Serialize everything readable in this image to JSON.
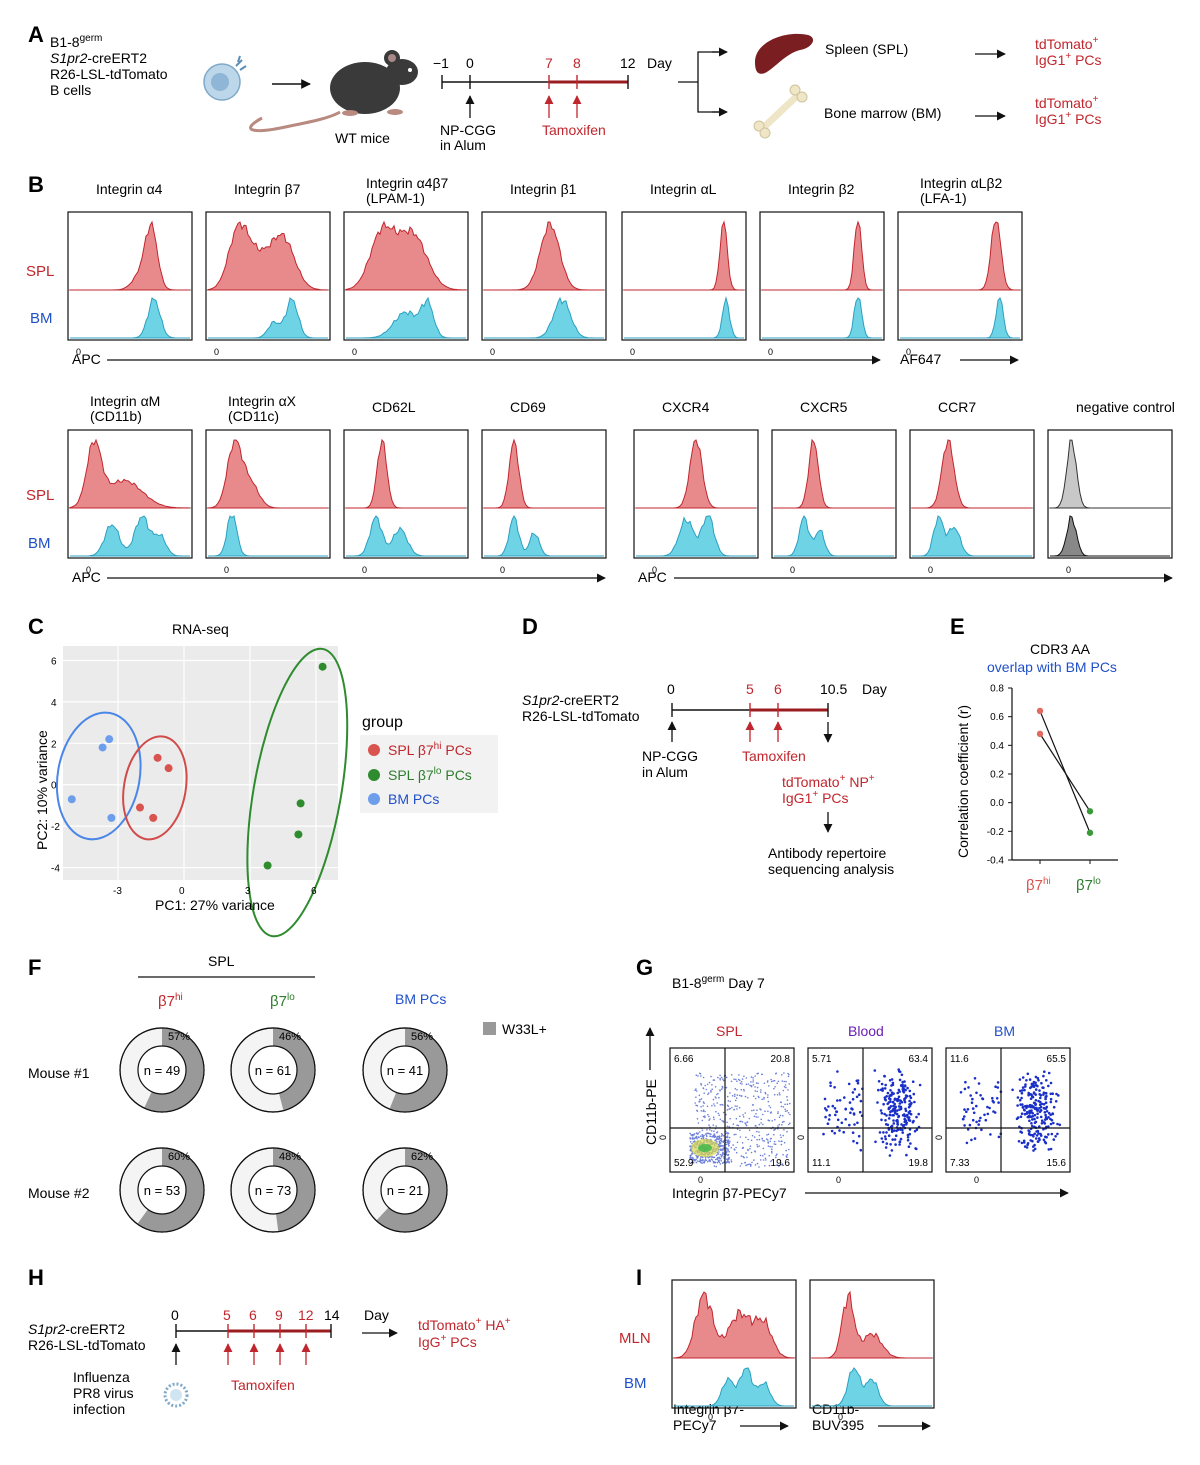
{
  "panel_letters": {
    "A": "A",
    "B": "B",
    "C": "C",
    "D": "D",
    "E": "E",
    "F": "F",
    "G": "G",
    "H": "H",
    "I": "I"
  },
  "colors": {
    "red": "#c0262d",
    "blue": "#2050c8",
    "green": "#2e7d2e",
    "spl_fill": "#e8898c",
    "bm_fill": "#6fd3e6",
    "ctrl_fill": "#c8c8c8",
    "grey_donut": "#999999"
  },
  "panelA": {
    "cells_line1": "B1-8",
    "cells_sup": "germ",
    "cells_line2": "S1pr2",
    "cells_line2b": "-creERT2",
    "cells_line3": "R26-LSL-tdTomato",
    "cells_line4": "B cells",
    "mice_label": "WT mice",
    "timeline_ticks": [
      "−1",
      "0",
      "7",
      "8",
      "12"
    ],
    "day": "Day",
    "immunization_line1": "NP-CGG",
    "immunization_line2": "in Alum",
    "tamoxifen": "Tamoxifen",
    "spleen": "Spleen (SPL)",
    "bone_marrow": "Bone marrow (BM)",
    "target_line1": "tdTomato",
    "target_sup": "+",
    "target_line2a": "IgG1",
    "target_line2b": " PCs"
  },
  "panelB": {
    "row1_titles": [
      [
        "Integrin α4",
        ""
      ],
      [
        "Integrin β7",
        ""
      ],
      [
        "Integrin α4β7",
        "(LPAM-1)"
      ],
      [
        "Integrin β1",
        ""
      ],
      [
        "Integrin αL",
        ""
      ],
      [
        "Integrin β2",
        ""
      ],
      [
        "Integrin αLβ2",
        "(LFA-1)"
      ]
    ],
    "row2_titles": [
      [
        "Integrin αM",
        "(CD11b)"
      ],
      [
        "Integrin αX",
        "(CD11c)"
      ],
      [
        "CD62L",
        ""
      ],
      [
        "CD69",
        ""
      ],
      [
        "CXCR4",
        ""
      ],
      [
        "CXCR5",
        ""
      ],
      [
        "CCR7",
        ""
      ],
      [
        "negative control",
        ""
      ]
    ],
    "spl": "SPL",
    "bm": "BM",
    "apc": "APC",
    "af647": "AF647",
    "zero": "0"
  },
  "panelC": {
    "title": "RNA-seq",
    "xlabel": "PC1: 27% variance",
    "ylabel": "PC2: 10% variance",
    "legend_title": "group",
    "legend": [
      [
        "SPL β7",
        "hi",
        " PCs"
      ],
      [
        "SPL β7",
        "lo",
        " PCs"
      ],
      [
        "BM PCs",
        "",
        ""
      ]
    ]
  },
  "panelD": {
    "line1a": "S1pr2",
    "line1b": "-creERT2",
    "line2": "R26-LSL-tdTomato",
    "ticks": [
      "0",
      "5",
      "6",
      "10.5"
    ],
    "day": "Day",
    "immunization_line1": "NP-CGG",
    "immunization_line2": "in Alum",
    "tamoxifen": "Tamoxifen",
    "target_line1a": "tdTomato",
    "target_line1b": " NP",
    "target_line2a": "IgG1",
    "target_line2b": " PCs",
    "plus": "+",
    "analysis_line1": "Antibody repertoire",
    "analysis_line2": "sequencing analysis"
  },
  "panelE": {
    "title": "CDR3 AA",
    "subtitle": "overlap with BM PCs",
    "ylabel": "Correlation coefficient (r)",
    "xlabels": [
      [
        "β7",
        "hi"
      ],
      [
        "β7",
        "lo"
      ]
    ]
  },
  "panelF": {
    "spl": "SPL",
    "headers": [
      [
        "β7",
        "hi"
      ],
      [
        "β7",
        "lo"
      ],
      [
        "BM PCs",
        ""
      ]
    ],
    "legend": "W33L+",
    "rows": [
      {
        "label": "Mouse #1",
        "donuts": [
          {
            "pct": "57%",
            "n": "n = 49"
          },
          {
            "pct": "46%",
            "n": "n = 61"
          },
          {
            "pct": "56%",
            "n": "n = 41"
          }
        ]
      },
      {
        "label": "Mouse #2",
        "donuts": [
          {
            "pct": "60%",
            "n": "n = 53"
          },
          {
            "pct": "48%",
            "n": "n = 73"
          },
          {
            "pct": "62%",
            "n": "n = 21"
          }
        ]
      }
    ]
  },
  "panelG": {
    "title_a": "B1-8",
    "title_sup": "germ",
    "title_b": " Day 7",
    "plots": [
      {
        "label": "SPL",
        "q": [
          "6.66",
          "20.8",
          "52.9",
          "19.6"
        ]
      },
      {
        "label": "Blood",
        "q": [
          "5.71",
          "63.4",
          "11.1",
          "19.8"
        ]
      },
      {
        "label": "BM",
        "q": [
          "11.6",
          "65.5",
          "7.33",
          "15.6"
        ]
      }
    ],
    "ylabel": "CD11b-PE",
    "xlabel": "Integrin β7-PECy7",
    "zero": "0"
  },
  "panelH": {
    "line1a": "S1pr2",
    "line1b": "-creERT2",
    "line2": "R26-LSL-tdTomato",
    "ticks": [
      "0",
      "5",
      "6",
      "9",
      "12",
      "14"
    ],
    "day": "Day",
    "infection_line1": "Influenza",
    "infection_line2": "PR8 virus",
    "infection_line3": "infection",
    "tamoxifen": "Tamoxifen",
    "target_line1a": "tdTomato",
    "target_line1b": " HA",
    "target_line2a": "IgG",
    "target_line2b": " PCs",
    "plus": "+"
  },
  "panelI": {
    "mln": "MLN",
    "bm": "BM",
    "xlabel1_line1": "Integrin β7-",
    "xlabel1_line2": "PECy7",
    "xlabel2_line1": "CD11b-",
    "xlabel2_line2": "BUV395",
    "zero": "0"
  },
  "chart_data": [
    {
      "type": "scatter",
      "title": "RNA-seq",
      "xlabel": "PC1: 27% variance",
      "ylabel": "PC2: 10% variance",
      "xlim": [
        -5.5,
        7
      ],
      "ylim": [
        -4.6,
        6.7
      ],
      "xticks": [
        -3,
        0,
        3,
        6
      ],
      "yticks": [
        -4,
        -2,
        0,
        2,
        4,
        6
      ],
      "series": [
        {
          "name": "SPL β7hi PCs",
          "x": [
            -1.2,
            -0.7,
            -2.0,
            -1.4
          ],
          "y": [
            1.3,
            0.8,
            -1.1,
            -1.6
          ]
        },
        {
          "name": "SPL β7lo PCs",
          "x": [
            6.3,
            5.3,
            5.2,
            3.8
          ],
          "y": [
            5.7,
            -0.9,
            -2.4,
            -3.9
          ]
        },
        {
          "name": "BM PCs",
          "x": [
            -3.4,
            -3.7,
            -5.1,
            -3.3
          ],
          "y": [
            2.2,
            1.8,
            -0.7,
            -1.6
          ]
        }
      ]
    },
    {
      "type": "line",
      "title": "CDR3 AA overlap with BM PCs",
      "ylabel": "Correlation coefficient (r)",
      "categories": [
        "β7hi",
        "β7lo"
      ],
      "ylim": [
        -0.4,
        0.8
      ],
      "yticks": [
        "0.8",
        "0.6",
        "0.4",
        "0.2",
        "0.0",
        "-0.2",
        "-0.4"
      ],
      "series": [
        {
          "name": "Mouse 1",
          "values": [
            0.64,
            -0.21
          ]
        },
        {
          "name": "Mouse 2",
          "values": [
            0.48,
            -0.06
          ]
        }
      ]
    },
    {
      "type": "pie",
      "title": "W33L+ fraction",
      "series": [
        {
          "name": "Mouse #1",
          "categories": [
            "β7hi",
            "β7lo",
            "BM PCs"
          ],
          "values": [
            57,
            46,
            56
          ]
        },
        {
          "name": "Mouse #2",
          "categories": [
            "β7hi",
            "β7lo",
            "BM PCs"
          ],
          "values": [
            60,
            48,
            62
          ]
        }
      ]
    }
  ]
}
